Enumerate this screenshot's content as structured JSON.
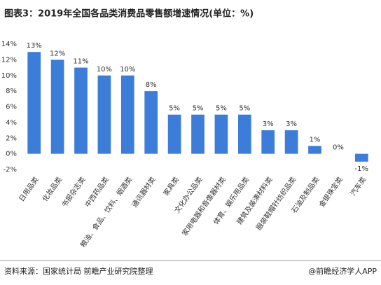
{
  "chart_data": {
    "type": "bar",
    "title": "图表3：2019年全国各品类消费品零售额增速情况(单位：%)",
    "categories": [
      "日用品类",
      "化妆品类",
      "书报杂志类",
      "中西药品类",
      "粮油、食品、饮料、烟酒类",
      "通讯器材类",
      "家具类",
      "文化办公品类",
      "家用电器和音像器材类",
      "体育、娱乐用品类",
      "建筑及装潢材料类",
      "服装鞋帽针纺织品类",
      "石油及制品类",
      "金银珠宝类",
      "汽车类"
    ],
    "values": [
      13,
      12,
      11,
      10,
      10,
      8,
      5,
      5,
      5,
      5,
      3,
      3,
      1,
      0,
      -1
    ],
    "value_labels": [
      "13%",
      "12%",
      "11%",
      "10%",
      "10%",
      "8%",
      "5%",
      "5%",
      "5%",
      "5%",
      "3%",
      "3%",
      "1%",
      "0%",
      "-1%"
    ],
    "color": "#3b7dd8",
    "ylim": [
      -2,
      14
    ],
    "yticks": [
      {
        "value": -2,
        "label": "-2%"
      },
      {
        "value": 0,
        "label": "0%"
      },
      {
        "value": 2,
        "label": "2%"
      },
      {
        "value": 4,
        "label": "4%"
      },
      {
        "value": 6,
        "label": "6%"
      },
      {
        "value": 8,
        "label": "8%"
      },
      {
        "value": 10,
        "label": "10%"
      },
      {
        "value": 12,
        "label": "12%"
      },
      {
        "value": 14,
        "label": "14%"
      }
    ],
    "grid": false,
    "source": "资料来源：国家统计局 前瞻产业研究院整理",
    "credit": "@前瞻经济学人APP"
  }
}
